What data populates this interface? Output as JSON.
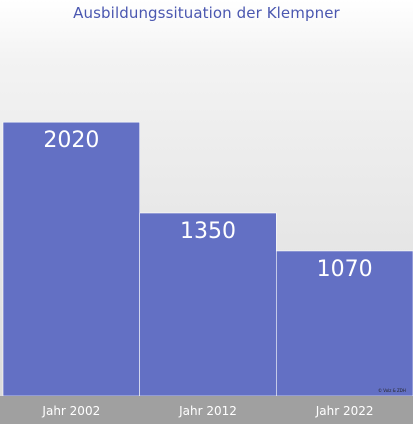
{
  "chart_data": {
    "type": "bar",
    "title": "Ausbildungssituation der Klempner",
    "categories": [
      "Jahr 2002",
      "Jahr 2012",
      "Jahr 2022"
    ],
    "values": [
      2020,
      1350,
      1070
    ],
    "data_labels": [
      "2020",
      "1350",
      "1070"
    ],
    "ylim": [
      0,
      2700
    ],
    "grid": false,
    "legend": "none",
    "bar_color": "#6370c4",
    "watermark": "© Volz & ZDH"
  }
}
